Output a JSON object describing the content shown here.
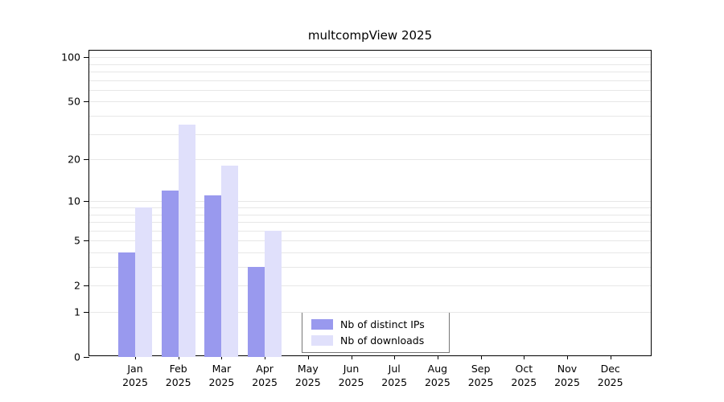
{
  "chart_data": {
    "type": "bar",
    "title": "multcompView 2025",
    "year": "2025",
    "categories": [
      "Jan",
      "Feb",
      "Mar",
      "Apr",
      "May",
      "Jun",
      "Jul",
      "Aug",
      "Sep",
      "Oct",
      "Nov",
      "Dec"
    ],
    "series": [
      {
        "name": "Nb of distinct IPs",
        "color": "#9999ee",
        "values": [
          4,
          12,
          11,
          3,
          0,
          0,
          0,
          0,
          0,
          0,
          0,
          0
        ]
      },
      {
        "name": "Nb of downloads",
        "color": "#e0e0fb",
        "values": [
          9,
          35,
          18,
          6,
          0,
          0,
          0,
          0,
          0,
          0,
          0,
          0
        ]
      }
    ],
    "yticks": [
      0,
      1,
      2,
      5,
      10,
      20,
      50,
      100
    ],
    "gridlines": [
      1,
      2,
      3,
      4,
      5,
      6,
      7,
      8,
      9,
      10,
      20,
      30,
      40,
      50,
      60,
      70,
      80,
      90,
      100
    ],
    "scale": "log(1+v)",
    "ylim": [
      0,
      100
    ],
    "grid": "horizontal",
    "legend_position": "inside-bottom-center"
  }
}
